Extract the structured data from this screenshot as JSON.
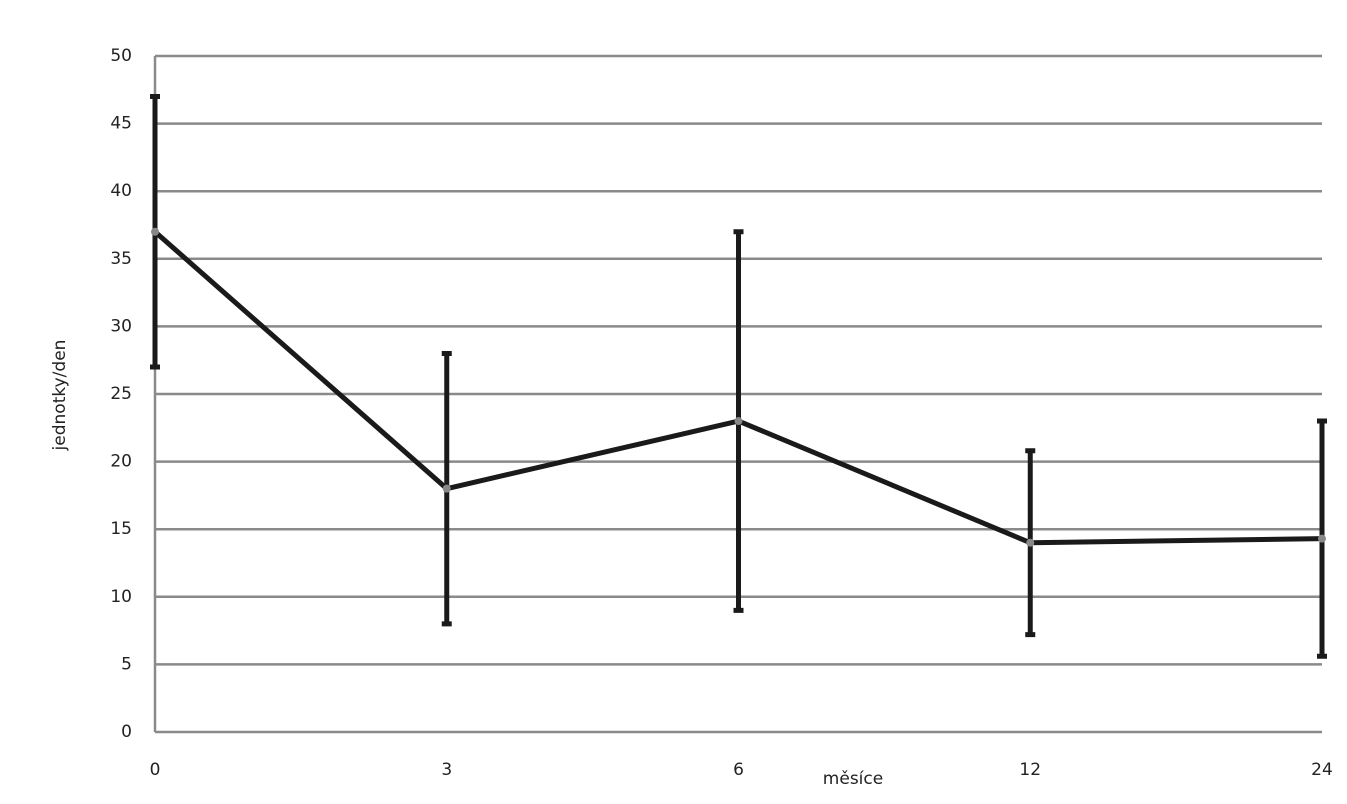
{
  "chart_data": {
    "type": "line",
    "x_label": "měsíce",
    "y_label": "jednotky/den",
    "categories": [
      "0",
      "3",
      "6",
      "12",
      "24"
    ],
    "values": [
      37,
      18,
      23,
      14,
      14.3
    ],
    "errors": [
      10,
      10,
      14,
      6.8,
      8.7
    ],
    "color": "#1a1a1a",
    "marker_color": "#888888",
    "ylim": [
      0,
      50
    ],
    "yticks": [
      0,
      5,
      10,
      15,
      20,
      25,
      30,
      35,
      40,
      45,
      50
    ],
    "grid": true
  }
}
